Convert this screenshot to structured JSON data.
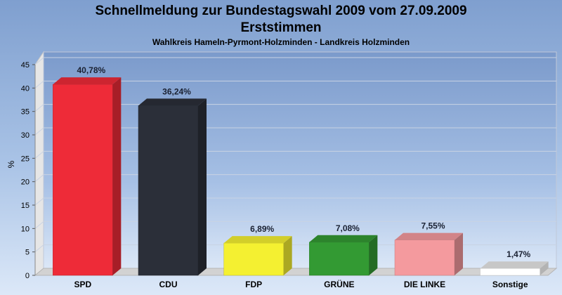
{
  "chart_data": {
    "type": "bar",
    "title": "Schnellmeldung zur Bundestagswahl 2009 vom 27.09.2009",
    "title_line2": "Erststimmen",
    "subtitle": "Wahlkreis Hameln-Pyrmont-Holzminden - Landkreis Holzminden",
    "ylabel": "%",
    "xlabel": "",
    "ylim": [
      0,
      45
    ],
    "yticks": [
      0,
      5,
      10,
      15,
      20,
      25,
      30,
      35,
      40,
      45
    ],
    "grid": true,
    "legend": "none",
    "categories": [
      "SPD",
      "CDU",
      "FDP",
      "GRÜNE",
      "DIE LINKE",
      "Sonstige"
    ],
    "values": [
      40.78,
      36.24,
      6.89,
      7.08,
      7.55,
      1.47
    ],
    "value_labels": [
      "40,78%",
      "36,24%",
      "6,89%",
      "7,08%",
      "7,55%",
      "1,47%"
    ],
    "colors": [
      "#ee2b38",
      "#2b2f39",
      "#f4f031",
      "#339a33",
      "#f49a9e",
      "#ffffff"
    ]
  }
}
